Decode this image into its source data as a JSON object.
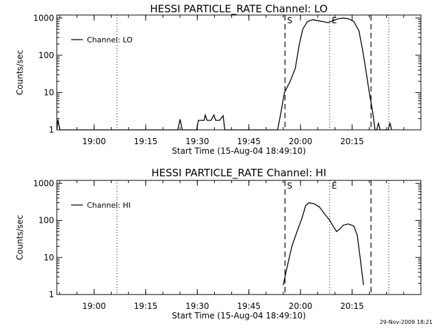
{
  "chart_data": [
    {
      "type": "line",
      "title": "HESSI PARTICLE_RATE Channel: LO",
      "xlabel": "Start Time (15-Aug-04 18:49:10)",
      "ylabel": "Counts/sec",
      "x_ticks": [
        "19:00",
        "19:15",
        "19:30",
        "19:45",
        "20:00",
        "20:15"
      ],
      "y_ticks": [
        "1",
        "10",
        "100",
        "1000"
      ],
      "yscale": "log",
      "xlim": [
        "18:49:10",
        "20:35:00"
      ],
      "ylim": [
        1,
        1200
      ],
      "legend_position": "top-left",
      "series": [
        {
          "name": "Channel: LO",
          "points": [
            [
              "18:49:10",
              1
            ],
            [
              "18:49:30",
              1.9
            ],
            [
              "18:50:00",
              1
            ],
            [
              "19:24:20",
              1
            ],
            [
              "19:25:00",
              1.9
            ],
            [
              "19:25:40",
              1
            ],
            [
              "19:29:50",
              1
            ],
            [
              "19:30:20",
              1.8
            ],
            [
              "19:31:20",
              1.8
            ],
            [
              "19:32:00",
              1.8
            ],
            [
              "19:32:20",
              2.5
            ],
            [
              "19:32:50",
              1.8
            ],
            [
              "19:34:00",
              1.8
            ],
            [
              "19:34:50",
              2.5
            ],
            [
              "19:35:20",
              1.8
            ],
            [
              "19:36:30",
              1.8
            ],
            [
              "19:37:30",
              2.4
            ],
            [
              "19:38:00",
              1
            ],
            [
              "19:53:20",
              1
            ],
            [
              "19:54:20",
              3
            ],
            [
              "19:55:20",
              10
            ],
            [
              "19:57:00",
              20
            ],
            [
              "19:58:30",
              45
            ],
            [
              "19:59:40",
              200
            ],
            [
              "20:00:40",
              500
            ],
            [
              "20:02:00",
              800
            ],
            [
              "20:03:30",
              900
            ],
            [
              "20:05:00",
              850
            ],
            [
              "20:06:30",
              800
            ],
            [
              "20:08:00",
              750
            ],
            [
              "20:09:30",
              850
            ],
            [
              "20:11:00",
              950
            ],
            [
              "20:12:30",
              1000
            ],
            [
              "20:14:00",
              950
            ],
            [
              "20:15:30",
              800
            ],
            [
              "20:17:00",
              450
            ],
            [
              "20:18:00",
              150
            ],
            [
              "20:19:00",
              40
            ],
            [
              "20:20:00",
              10
            ],
            [
              "20:21:00",
              3
            ],
            [
              "20:21:40",
              1
            ],
            [
              "20:22:10",
              1
            ],
            [
              "20:22:40",
              1.5
            ],
            [
              "20:23:10",
              1
            ],
            [
              "20:25:30",
              1
            ],
            [
              "20:26:00",
              1.5
            ],
            [
              "20:26:30",
              1
            ]
          ]
        }
      ],
      "markers": [
        {
          "time": "19:06:40",
          "style": "dotted",
          "label": ""
        },
        {
          "time": "19:55:30",
          "style": "dashed",
          "label": "S"
        },
        {
          "time": "20:08:30",
          "style": "dotted",
          "label": "E"
        },
        {
          "time": "20:20:30",
          "style": "dashed",
          "label": ""
        },
        {
          "time": "20:25:40",
          "style": "dotted",
          "label": ""
        }
      ]
    },
    {
      "type": "line",
      "title": "HESSI PARTICLE_RATE Channel: HI",
      "xlabel": "Start Time (15-Aug-04 18:49:10)",
      "ylabel": "Counts/sec",
      "x_ticks": [
        "19:00",
        "19:15",
        "19:30",
        "19:45",
        "20:00",
        "20:15"
      ],
      "y_ticks": [
        "1",
        "10",
        "100",
        "1000"
      ],
      "yscale": "log",
      "xlim": [
        "18:49:10",
        "20:35:00"
      ],
      "ylim": [
        1,
        1200
      ],
      "legend_position": "top-left",
      "series": [
        {
          "name": "Channel: HI",
          "points": [
            [
              "19:55:00",
              1.8
            ],
            [
              "19:56:00",
              5
            ],
            [
              "19:57:30",
              20
            ],
            [
              "19:59:00",
              50
            ],
            [
              "20:00:30",
              120
            ],
            [
              "20:01:30",
              250
            ],
            [
              "20:02:30",
              300
            ],
            [
              "20:04:00",
              280
            ],
            [
              "20:05:30",
              230
            ],
            [
              "20:07:00",
              150
            ],
            [
              "20:08:30",
              100
            ],
            [
              "20:09:30",
              70
            ],
            [
              "20:10:30",
              50
            ],
            [
              "20:11:30",
              60
            ],
            [
              "20:12:30",
              75
            ],
            [
              "20:14:00",
              80
            ],
            [
              "20:15:30",
              70
            ],
            [
              "20:16:30",
              40
            ],
            [
              "20:17:20",
              10
            ],
            [
              "20:18:20",
              1.8
            ]
          ]
        }
      ],
      "markers": [
        {
          "time": "19:06:40",
          "style": "dotted",
          "label": ""
        },
        {
          "time": "19:55:30",
          "style": "dashed",
          "label": "S"
        },
        {
          "time": "20:08:30",
          "style": "dotted",
          "label": "E"
        },
        {
          "time": "20:20:30",
          "style": "dashed",
          "label": ""
        },
        {
          "time": "20:25:40",
          "style": "dotted",
          "label": ""
        }
      ]
    }
  ],
  "footer": {
    "timestamp": "29-Nov-2009 18:21"
  }
}
